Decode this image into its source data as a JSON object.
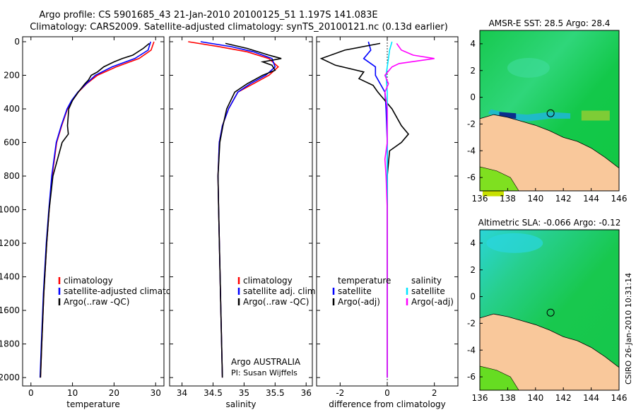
{
  "title": {
    "line1": "Argo profile: CS 5901685_43 21-Jan-2010 20100125_51 1.197S 141.083E",
    "line2": "Climatology: CARS2009. Satellite-adjusted climatology: synTS_20100121.nc (0.13d earlier)"
  },
  "credit": "CSIRO 26-Jan-2010 10:31:14",
  "colors": {
    "climatology": "#ff0000",
    "satellite": "#0000ff",
    "argo": "#000000",
    "sat_diff_salinity": "#00e5ff",
    "argo_diff_salinity": "#ff00ff",
    "land": "#f9c89b",
    "ocean": "#22cc44"
  },
  "annotation": {
    "line1": "Argo AUSTRALIA",
    "line2": "PI: Susan Wijffels"
  },
  "chart_data": [
    {
      "type": "line",
      "xlabel": "temperature",
      "ylabel": "",
      "xlim": [
        -2,
        32
      ],
      "ylim": [
        2050,
        0
      ],
      "xticks": [
        "0",
        "10",
        "20",
        "30"
      ],
      "yticks": [
        "0",
        "200",
        "400",
        "600",
        "800",
        "1000",
        "1200",
        "1400",
        "1600",
        "1800",
        "2000"
      ],
      "legend": [
        "climatology",
        "satellite-adjusted climatology",
        "Argo(..raw -QC)"
      ],
      "series": [
        {
          "name": "climatology",
          "color": "#ff0000",
          "depth": [
            0,
            50,
            100,
            150,
            200,
            250,
            300,
            350,
            400,
            500,
            600,
            800,
            1000,
            1200,
            1500,
            1800,
            2000
          ],
          "values": [
            29.6,
            28.9,
            26,
            20.5,
            16,
            13.4,
            11.4,
            10,
            8.8,
            7.4,
            6.2,
            5.1,
            4.4,
            3.8,
            3.1,
            2.6,
            2.3
          ]
        },
        {
          "name": "satellite-adjusted climatology",
          "color": "#0000ff",
          "depth": [
            0,
            50,
            100,
            150,
            200,
            250,
            300,
            350,
            400,
            500,
            600,
            800,
            1000,
            1200,
            1500,
            1800,
            2000
          ],
          "values": [
            28.8,
            28.2,
            25,
            19.5,
            15.5,
            13.3,
            11.3,
            9.8,
            8.7,
            7.3,
            6.1,
            5,
            4.3,
            3.7,
            3,
            2.5,
            2.2
          ]
        },
        {
          "name": "Argo(..raw -QC)",
          "color": "#000000",
          "depth": [
            10,
            40,
            80,
            100,
            120,
            150,
            180,
            200,
            230,
            250,
            300,
            350,
            400,
            500,
            550,
            600,
            800,
            1000,
            1200,
            1500,
            1800,
            2000
          ],
          "values": [
            28.5,
            27,
            24.5,
            22,
            20,
            17.5,
            16,
            14.5,
            13.8,
            13,
            11.4,
            10,
            9.1,
            8.8,
            9,
            7.5,
            5.3,
            4.4,
            3.8,
            3.1,
            2.6,
            2.3
          ]
        }
      ]
    },
    {
      "type": "line",
      "xlabel": "salinity",
      "ylabel": "",
      "xlim": [
        33.8,
        36.1
      ],
      "ylim": [
        2050,
        0
      ],
      "xticks": [
        "34",
        "34.5",
        "35",
        "35.5",
        "36"
      ],
      "legend": [
        "climatology",
        "satellite adj. clim.",
        "Argo(..raw -QC)"
      ],
      "series": [
        {
          "name": "climatology",
          "color": "#ff0000",
          "depth": [
            0,
            30,
            60,
            100,
            150,
            200,
            250,
            300,
            400,
            500,
            600,
            800,
            1000,
            1500,
            2000
          ],
          "values": [
            34.1,
            34.6,
            35.05,
            35.4,
            35.55,
            35.4,
            35.15,
            34.9,
            34.75,
            34.65,
            34.6,
            34.58,
            34.59,
            34.62,
            34.65
          ]
        },
        {
          "name": "satellite adj. clim.",
          "color": "#0000ff",
          "depth": [
            0,
            30,
            60,
            100,
            150,
            200,
            250,
            300,
            400,
            500,
            600,
            800,
            1000,
            1500,
            2000
          ],
          "values": [
            34.3,
            34.8,
            35.15,
            35.45,
            35.5,
            35.35,
            35.1,
            34.9,
            34.75,
            34.65,
            34.6,
            34.58,
            34.59,
            34.62,
            34.65
          ]
        },
        {
          "name": "Argo(..raw -QC)",
          "color": "#000000",
          "depth": [
            10,
            40,
            80,
            100,
            120,
            140,
            170,
            200,
            250,
            300,
            400,
            500,
            600,
            800,
            1000,
            1500,
            2000
          ],
          "values": [
            34.7,
            35.05,
            35.4,
            35.6,
            35.3,
            35.45,
            35.5,
            35.3,
            35.05,
            34.85,
            34.72,
            34.66,
            34.61,
            34.58,
            34.59,
            34.62,
            34.65
          ]
        }
      ]
    },
    {
      "type": "line",
      "xlabel": "difference from climatology",
      "ylabel": "",
      "xlim": [
        -3,
        3
      ],
      "ylim": [
        2050,
        0
      ],
      "xticks": [
        "-2",
        "0",
        "2"
      ],
      "legend": [
        "temperature",
        "satellite",
        "Argo(-adj)",
        "salinity",
        "satellite",
        "Argo(-adj)"
      ],
      "series": [
        {
          "name": "satellite",
          "quantity": "temperature",
          "color": "#0000ff",
          "depth": [
            0,
            50,
            100,
            150,
            200,
            300,
            400,
            600,
            1000,
            2000
          ],
          "values": [
            -0.8,
            -0.7,
            -1,
            -0.5,
            -0.5,
            -0.1,
            -0.05,
            0,
            0,
            0
          ]
        },
        {
          "name": "Argo(-adj)",
          "quantity": "temperature",
          "color": "#000000",
          "depth": [
            10,
            50,
            100,
            140,
            180,
            220,
            260,
            300,
            400,
            500,
            550,
            600,
            650,
            800,
            1000,
            1500,
            2000
          ],
          "values": [
            -0.3,
            -1.8,
            -2.8,
            -2.2,
            -1,
            -1.2,
            -0.6,
            -0.4,
            0.2,
            0.6,
            0.9,
            0.6,
            0.1,
            0,
            0,
            0,
            0
          ]
        },
        {
          "name": "satellite",
          "quantity": "salinity",
          "color": "#00e5ff",
          "depth": [
            0,
            50,
            100,
            150,
            200,
            300,
            400,
            600,
            1000,
            2000
          ],
          "values": [
            0.2,
            0.1,
            0.05,
            0,
            -0.05,
            0,
            0,
            0,
            0,
            0
          ]
        },
        {
          "name": "Argo(-adj)",
          "quantity": "salinity",
          "color": "#ff00ff",
          "depth": [
            10,
            50,
            80,
            100,
            130,
            150,
            200,
            250,
            300,
            400,
            600,
            700,
            800,
            1000,
            1500,
            2000
          ],
          "values": [
            0.4,
            0.6,
            1.1,
            2,
            0.5,
            0.2,
            -0.1,
            0.05,
            -0.1,
            0,
            0,
            -0.1,
            -0.05,
            0,
            0,
            0
          ]
        }
      ]
    },
    {
      "type": "heatmap",
      "title": "AMSR-E SST: 28.5 Argo: 28.4",
      "xlim": [
        136,
        146
      ],
      "ylim": [
        -7,
        5
      ],
      "xticks": [
        "136",
        "138",
        "140",
        "142",
        "144",
        "146"
      ],
      "yticks": [
        "4",
        "2",
        "0",
        "-2",
        "-4",
        "-6"
      ],
      "marker": {
        "lon": 141.083,
        "lat": -1.197
      }
    },
    {
      "type": "heatmap",
      "title": "Altimetric SLA: -0.066 Argo: -0.12",
      "xlim": [
        136,
        146
      ],
      "ylim": [
        -7,
        5
      ],
      "xticks": [
        "136",
        "138",
        "140",
        "142",
        "144",
        "146"
      ],
      "yticks": [
        "4",
        "2",
        "0",
        "-2",
        "-4",
        "-6"
      ],
      "marker": {
        "lon": 141.083,
        "lat": -1.197
      }
    }
  ]
}
